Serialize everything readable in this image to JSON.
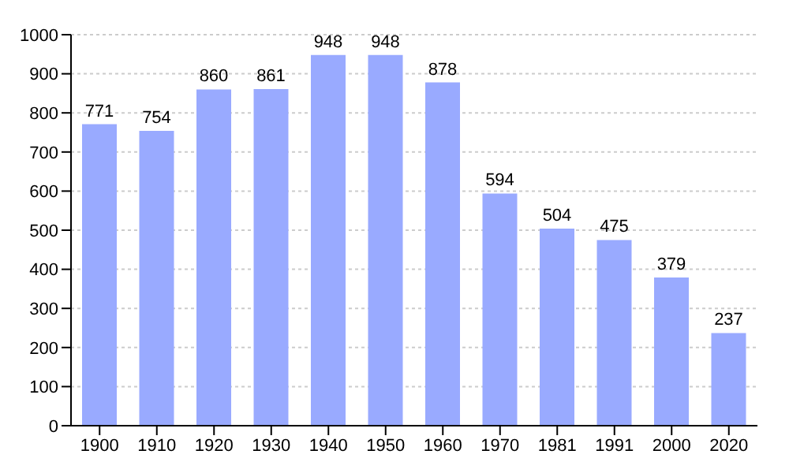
{
  "chart_data": {
    "type": "bar",
    "categories": [
      "1900",
      "1910",
      "1920",
      "1930",
      "1940",
      "1950",
      "1960",
      "1970",
      "1981",
      "1991",
      "2000",
      "2020"
    ],
    "values": [
      771,
      754,
      860,
      861,
      948,
      948,
      878,
      594,
      504,
      475,
      379,
      237
    ],
    "color": "#99aaff",
    "ylim": [
      0,
      1000
    ],
    "yticks": [
      0,
      100,
      200,
      300,
      400,
      500,
      600,
      700,
      800,
      900,
      1000
    ],
    "grid": "y",
    "data_labels": true
  }
}
